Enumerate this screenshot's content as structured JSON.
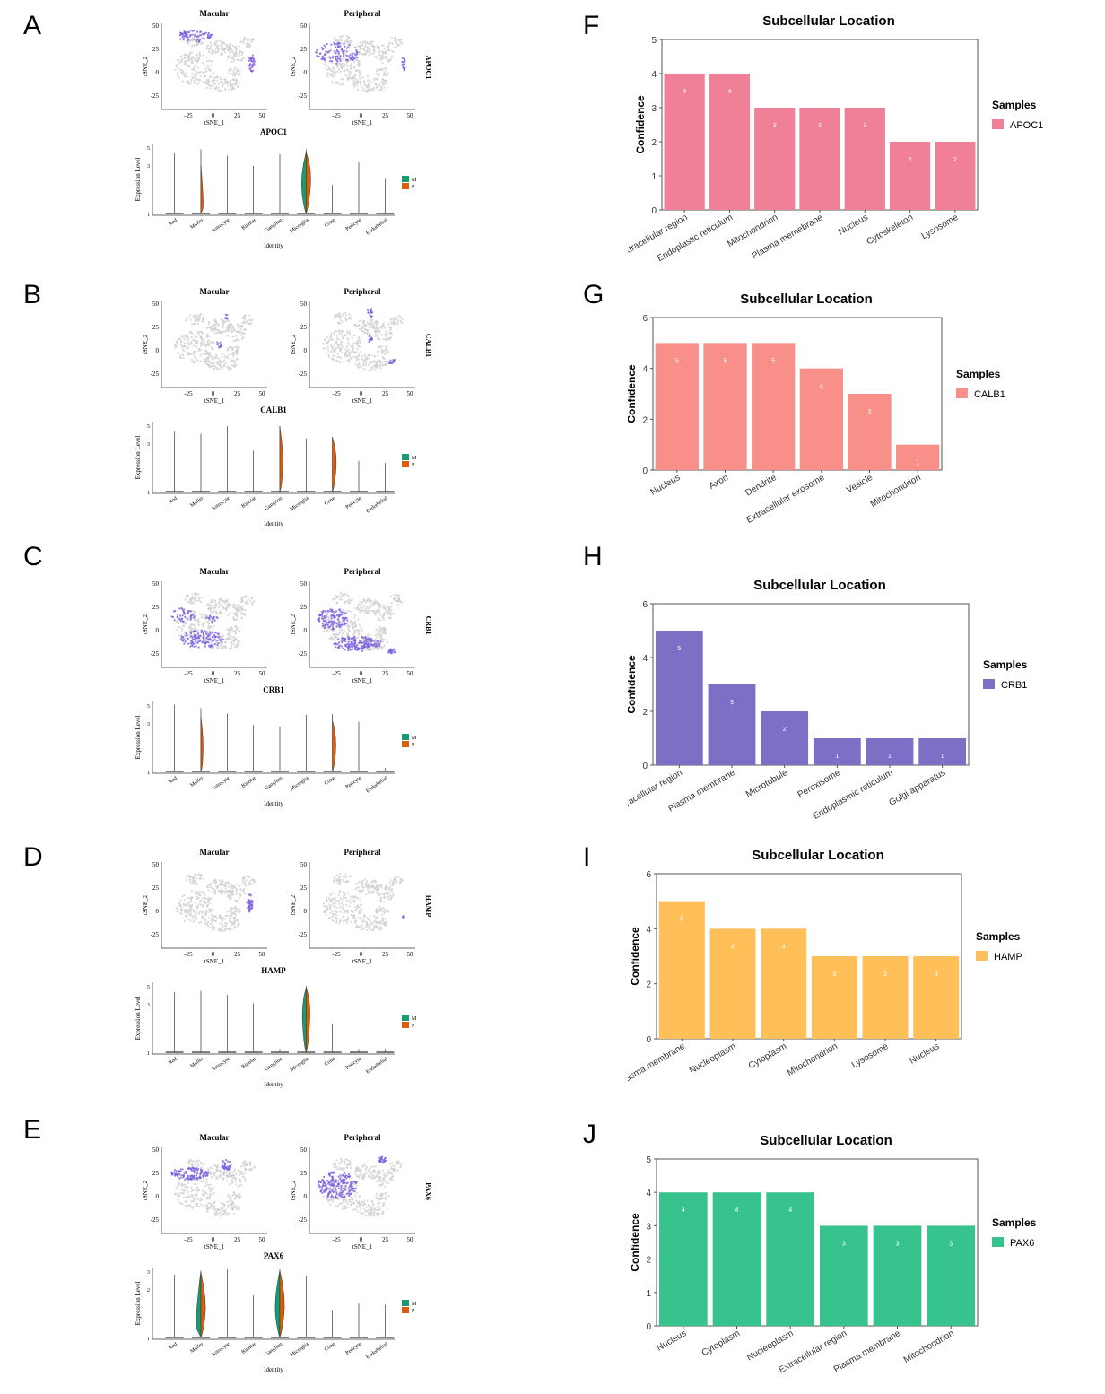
{
  "figure": {
    "letters": [
      "A",
      "B",
      "C",
      "D",
      "E",
      "F",
      "G",
      "H",
      "I",
      "J"
    ]
  },
  "tsne": {
    "xlabel": "tSNE_1",
    "ylabel": "tSNE_2",
    "left_title": "Macular",
    "right_title": "Peripheral",
    "rows": [
      {
        "gene": "APOC1",
        "yticks": [
          "50",
          "25",
          "0",
          "-25"
        ],
        "xticks": [
          "-25",
          "0",
          "25",
          "50"
        ]
      },
      {
        "gene": "CALB1",
        "yticks": [
          "50",
          "25",
          "0",
          "-25"
        ],
        "xticks": [
          "-25",
          "0",
          "25",
          "50"
        ]
      },
      {
        "gene": "CRB1",
        "yticks": [
          "50",
          "25",
          "0",
          "-25"
        ],
        "xticks": [
          "-25",
          "0",
          "25",
          "50"
        ]
      },
      {
        "gene": "HAMP",
        "yticks": [
          "50",
          "25",
          "0",
          "-25"
        ],
        "xticks": [
          "-25",
          "0",
          "25",
          "50"
        ]
      },
      {
        "gene": "PAX6",
        "yticks": [
          "50",
          "25",
          "0",
          "-25"
        ],
        "xticks": [
          "-25",
          "0",
          "25",
          "50"
        ]
      }
    ],
    "colors": {
      "background_points": "#cfcfcf",
      "highlight": "#7b5fe0"
    }
  },
  "violin": {
    "xlabel": "Identity",
    "ylabel": "Expression Level",
    "identities": [
      "Rod",
      "Muller",
      "Astrocyte",
      "Bipolar",
      "Ganglion",
      "Microglia",
      "Cone",
      "Pericyte",
      "Endothelial"
    ],
    "legend": [
      "M",
      "P"
    ],
    "colors": {
      "M": "#1a9a73",
      "P": "#d95f0e"
    },
    "rows": [
      {
        "gene": "APOC1",
        "yticks": [
          "5",
          "3",
          "1"
        ]
      },
      {
        "gene": "CALB1",
        "yticks": [
          "5",
          "3",
          "1"
        ]
      },
      {
        "gene": "CRB1",
        "yticks": [
          "5",
          "3",
          "1"
        ]
      },
      {
        "gene": "HAMP",
        "yticks": [
          "5",
          "3",
          "1"
        ]
      },
      {
        "gene": "PAX6",
        "yticks": [
          "3",
          "2",
          "1"
        ]
      }
    ]
  },
  "chart_data": [
    {
      "type": "bar",
      "title": "Subcellular Location",
      "ylabel": "Confidence",
      "ylim": [
        0,
        5
      ],
      "yticks": [
        "0",
        "1",
        "2",
        "3",
        "4",
        "5"
      ],
      "legend_title": "Samples",
      "series_name": "APOC1",
      "color": "#f07f98",
      "categories": [
        "Extracellular region",
        "Endoplastic reticulum",
        "Mitochondrion",
        "Plasma memebrane",
        "Nucleus",
        "Cytoskeleton",
        "Lysosome"
      ],
      "values": [
        4,
        4,
        3,
        3,
        3,
        2,
        2
      ]
    },
    {
      "type": "bar",
      "title": "Subcellular Location",
      "ylabel": "Confidence",
      "ylim": [
        0,
        6
      ],
      "yticks": [
        "0",
        "2",
        "4",
        "6"
      ],
      "legend_title": "Samples",
      "series_name": "CALB1",
      "color": "#f89089",
      "categories": [
        "Nucleus",
        "Axon",
        "Dendrite",
        "Extracellular exosome",
        "Vesicle",
        "Mitochondrion"
      ],
      "values": [
        5,
        5,
        5,
        4,
        3,
        1
      ]
    },
    {
      "type": "bar",
      "title": "Subcellular Location",
      "ylabel": "Confidence",
      "ylim": [
        0,
        6
      ],
      "yticks": [
        "0",
        "2",
        "4",
        "6"
      ],
      "legend_title": "Samples",
      "series_name": "CRB1",
      "color": "#7b6fc6",
      "categories": [
        "Extracellular region",
        "Plasma membrane",
        "Microtubule",
        "Peroxisome",
        "Endoplasmic reticulum",
        "Golgi apparatus"
      ],
      "values": [
        5,
        3,
        2,
        1,
        1,
        1
      ]
    },
    {
      "type": "bar",
      "title": "Subcellular Location",
      "ylabel": "Confidence",
      "ylim": [
        0,
        6
      ],
      "yticks": [
        "0",
        "2",
        "4",
        "6"
      ],
      "legend_title": "Samples",
      "series_name": "HAMP",
      "color": "#ffc05a",
      "categories": [
        "Plasma membrane",
        "Nucleoplasm",
        "Cytoplasm",
        "Mitochondrion",
        "Lysosome",
        "Nucleus"
      ],
      "values": [
        5,
        4,
        4,
        3,
        3,
        3
      ]
    },
    {
      "type": "bar",
      "title": "Subcellular Location",
      "ylabel": "Confidence",
      "ylim": [
        0,
        5
      ],
      "yticks": [
        "0",
        "1",
        "2",
        "3",
        "4",
        "5"
      ],
      "legend_title": "Samples",
      "series_name": "PAX6",
      "color": "#36c38e",
      "categories": [
        "Nucleus",
        "Cytoplasm",
        "Nucleoplasm",
        "Extracellular region",
        "Plasma membrane",
        "Mitochondrion"
      ],
      "values": [
        4,
        4,
        4,
        3,
        3,
        3
      ]
    }
  ]
}
